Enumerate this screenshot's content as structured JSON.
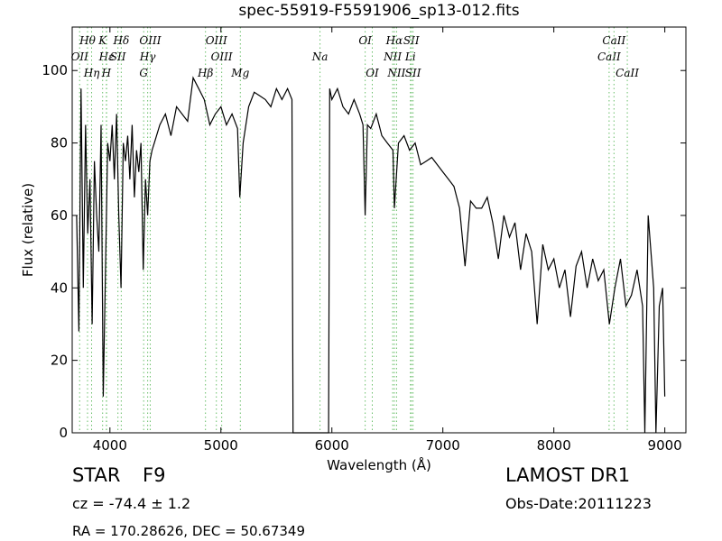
{
  "chart_data": {
    "type": "line",
    "title": "spec-55919-F5591906_sp13-012.fits",
    "x_label": "Wavelength (Å)",
    "y_label": "Flux (relative)",
    "color": "#000000",
    "line_color": "#6abf6a",
    "xlim": [
      3660,
      9190
    ],
    "ylim": [
      0,
      112
    ],
    "xticks": [
      4000,
      5000,
      6000,
      7000,
      8000,
      9000
    ],
    "yticks": [
      0,
      20,
      40,
      60,
      80,
      100
    ],
    "x": [
      3700,
      3720,
      3740,
      3760,
      3780,
      3800,
      3820,
      3840,
      3860,
      3880,
      3900,
      3920,
      3940,
      3960,
      3980,
      4000,
      4020,
      4040,
      4060,
      4080,
      4100,
      4120,
      4140,
      4160,
      4180,
      4200,
      4220,
      4240,
      4260,
      4280,
      4300,
      4320,
      4340,
      4360,
      4380,
      4400,
      4450,
      4500,
      4550,
      4600,
      4650,
      4700,
      4750,
      4800,
      4850,
      4900,
      4950,
      5000,
      5050,
      5100,
      5150,
      5170,
      5200,
      5250,
      5300,
      5350,
      5400,
      5450,
      5500,
      5550,
      5600,
      5640,
      5650,
      5970,
      5980,
      6000,
      6050,
      6100,
      6150,
      6200,
      6250,
      6280,
      6300,
      6320,
      6350,
      6400,
      6450,
      6500,
      6550,
      6563,
      6600,
      6650,
      6700,
      6750,
      6800,
      6850,
      6900,
      6950,
      7000,
      7050,
      7100,
      7150,
      7200,
      7250,
      7300,
      7350,
      7400,
      7450,
      7500,
      7550,
      7600,
      7650,
      7700,
      7750,
      7800,
      7850,
      7900,
      7950,
      8000,
      8050,
      8100,
      8150,
      8200,
      8250,
      8300,
      8350,
      8400,
      8450,
      8500,
      8550,
      8600,
      8650,
      8700,
      8750,
      8800,
      8820,
      8850,
      8900,
      8920,
      8950,
      8980,
      9000
    ],
    "values": [
      60,
      28,
      95,
      40,
      85,
      55,
      70,
      30,
      75,
      60,
      50,
      85,
      10,
      45,
      80,
      75,
      85,
      70,
      88,
      60,
      40,
      80,
      75,
      82,
      70,
      85,
      65,
      78,
      72,
      80,
      45,
      70,
      60,
      75,
      78,
      80,
      85,
      88,
      82,
      90,
      88,
      86,
      98,
      95,
      92,
      85,
      88,
      90,
      85,
      88,
      84,
      65,
      80,
      90,
      94,
      93,
      92,
      90,
      95,
      92,
      95,
      92,
      0,
      0,
      95,
      92,
      95,
      90,
      88,
      92,
      88,
      85,
      60,
      85,
      84,
      88,
      82,
      80,
      78,
      62,
      80,
      82,
      78,
      80,
      74,
      75,
      76,
      74,
      72,
      70,
      68,
      62,
      46,
      64,
      62,
      62,
      65,
      58,
      48,
      60,
      54,
      58,
      45,
      55,
      50,
      30,
      52,
      45,
      48,
      40,
      45,
      32,
      46,
      50,
      40,
      48,
      42,
      45,
      30,
      40,
      48,
      35,
      38,
      45,
      35,
      0,
      60,
      40,
      0,
      35,
      40,
      10
    ],
    "lines": [
      {
        "label": "OII",
        "x": 3727
      },
      {
        "label": "Hθ",
        "x": 3798
      },
      {
        "label": "Hη",
        "x": 3835
      },
      {
        "label": "K",
        "x": 3934
      },
      {
        "label": "Hε",
        "x": 3970
      },
      {
        "label": "H",
        "x": 3968
      },
      {
        "label": "SII",
        "x": 4072
      },
      {
        "label": "Hδ",
        "x": 4102
      },
      {
        "label": "G",
        "x": 4304
      },
      {
        "label": "Hγ",
        "x": 4340
      },
      {
        "label": "OIII",
        "x": 4363
      },
      {
        "label": "Hβ",
        "x": 4861
      },
      {
        "label": "OIII",
        "x": 4959
      },
      {
        "label": "OIII",
        "x": 5007
      },
      {
        "label": "Mg",
        "x": 5175
      },
      {
        "label": "Na",
        "x": 5893
      },
      {
        "label": "OI",
        "x": 6300
      },
      {
        "label": "OI",
        "x": 6364
      },
      {
        "label": "NII",
        "x": 6548
      },
      {
        "label": "Hα",
        "x": 6563
      },
      {
        "label": "NII",
        "x": 6583
      },
      {
        "label": "Li",
        "x": 6708
      },
      {
        "label": "SII",
        "x": 6716
      },
      {
        "label": "SII",
        "x": 6731
      },
      {
        "label": "CaII",
        "x": 8498
      },
      {
        "label": "CaII",
        "x": 8542
      },
      {
        "label": "CaII",
        "x": 8662
      }
    ],
    "info": {
      "class": "STAR",
      "subclass": "F9",
      "redshift": "cz = -74.4 ± 1.2",
      "position": "RA = 170.28626, DEC = 50.67349",
      "survey": "LAMOST DR1",
      "obs_date": "Obs-Date:20111223"
    }
  }
}
